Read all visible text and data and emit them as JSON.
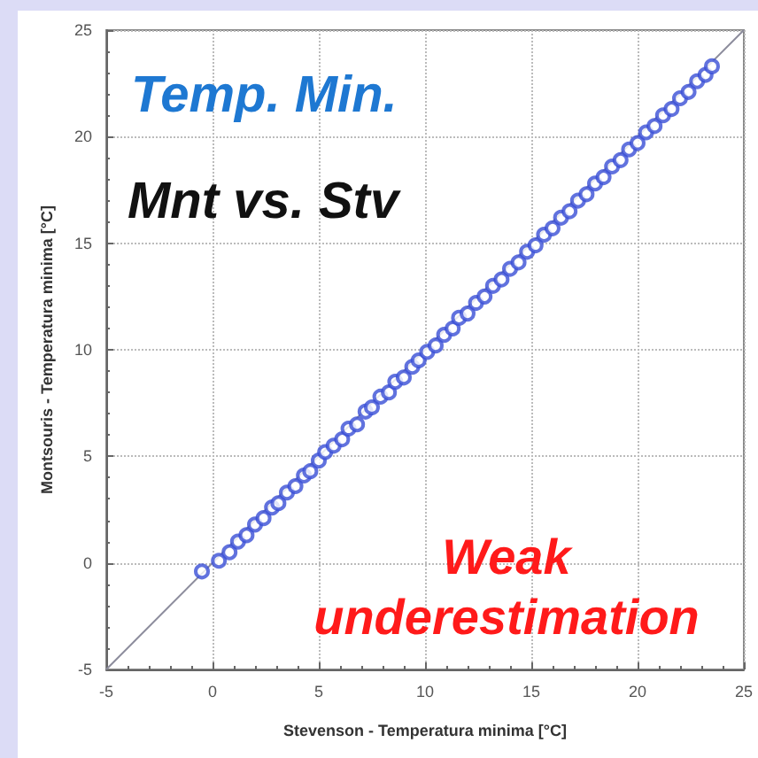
{
  "chart_data": {
    "type": "scatter",
    "title": "Temp. Min.",
    "subtitle": "Mnt vs. Stv",
    "xlabel": "Stevenson - Temperatura minima [°C]",
    "ylabel": "Montsouris - Temperatura minima [°C]",
    "annotations": [
      "Weak underestimation"
    ],
    "xlim": [
      -5,
      25
    ],
    "xticks": [
      -5,
      0,
      5,
      10,
      15,
      20,
      25
    ],
    "ylim": [
      -5,
      25
    ],
    "yticks": [
      -5,
      0,
      5,
      10,
      15,
      20,
      25
    ],
    "grid": true,
    "marker": "circle",
    "series": [
      {
        "type": "line",
        "color": "#8c8c9c",
        "line_style": "solid",
        "marker": "none",
        "x": [
          -5,
          25
        ],
        "values": [
          -5,
          25
        ]
      },
      {
        "color": "#3a4fd6",
        "x": [
          -0.5,
          0.3,
          0.8,
          1.2,
          1.6,
          2.0,
          2.4,
          2.8,
          3.1,
          3.5,
          3.9,
          4.3,
          4.6,
          5.0,
          5.3,
          5.7,
          6.1,
          6.4,
          6.8,
          7.2,
          7.5,
          7.9,
          8.3,
          8.6,
          9.0,
          9.4,
          9.7,
          10.1,
          10.5,
          10.9,
          11.3,
          11.6,
          12.0,
          12.4,
          12.8,
          13.2,
          13.6,
          14.0,
          14.4,
          14.8,
          15.2,
          15.6,
          16.0,
          16.4,
          16.8,
          17.2,
          17.6,
          18.0,
          18.4,
          18.8,
          19.2,
          19.6,
          20.0,
          20.4,
          20.8,
          21.2,
          21.6,
          22.0,
          22.4,
          22.8,
          23.2,
          23.5
        ],
        "values": [
          -0.4,
          0.1,
          0.5,
          1.0,
          1.3,
          1.8,
          2.1,
          2.6,
          2.8,
          3.3,
          3.6,
          4.1,
          4.3,
          4.8,
          5.2,
          5.5,
          5.8,
          6.3,
          6.5,
          7.1,
          7.3,
          7.8,
          8.0,
          8.5,
          8.7,
          9.2,
          9.5,
          9.9,
          10.2,
          10.7,
          11.0,
          11.5,
          11.7,
          12.2,
          12.5,
          13.0,
          13.3,
          13.8,
          14.1,
          14.6,
          14.9,
          15.4,
          15.7,
          16.2,
          16.5,
          17.0,
          17.3,
          17.8,
          18.1,
          18.6,
          18.9,
          19.4,
          19.7,
          20.2,
          20.5,
          21.0,
          21.3,
          21.8,
          22.1,
          22.6,
          22.9,
          23.3
        ]
      }
    ]
  }
}
